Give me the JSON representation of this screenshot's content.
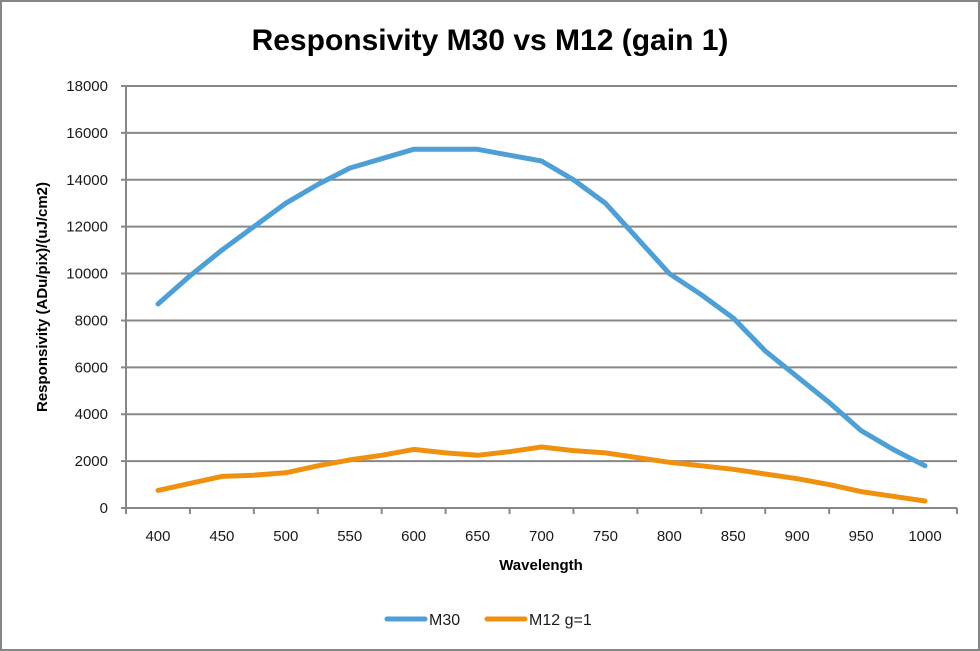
{
  "chart_data": {
    "type": "line",
    "title": "Responsivity M30 vs M12 (gain 1)",
    "xlabel": "Wavelength",
    "ylabel": "Responsivity (ADu/pix)/(uJ/cm2)",
    "x_tick_labels": [
      "400",
      "450",
      "500",
      "550",
      "600",
      "650",
      "700",
      "750",
      "800",
      "850",
      "900",
      "950",
      "1000"
    ],
    "y_tick_labels": [
      "0",
      "2000",
      "4000",
      "6000",
      "8000",
      "10000",
      "12000",
      "14000",
      "16000",
      "18000"
    ],
    "ylim": [
      0,
      18000
    ],
    "xlim": [
      400,
      1000
    ],
    "grid": "horizontal",
    "legend_position": "bottom",
    "x": [
      400,
      425,
      450,
      475,
      500,
      525,
      550,
      575,
      600,
      625,
      650,
      675,
      700,
      725,
      750,
      775,
      800,
      825,
      850,
      875,
      900,
      925,
      950,
      975,
      1000
    ],
    "series": [
      {
        "name": "M30",
        "color": "#4e9fd5",
        "values": [
          8700,
          9900,
          11000,
          12000,
          13000,
          13800,
          14500,
          14900,
          15300,
          15300,
          15300,
          15050,
          14800,
          14000,
          13000,
          11500,
          10000,
          9100,
          8100,
          6700,
          5600,
          4500,
          3300,
          2500,
          1800
        ]
      },
      {
        "name": "M12 g=1",
        "color": "#f0900f",
        "values": [
          750,
          1050,
          1350,
          1400,
          1500,
          1800,
          2050,
          2250,
          2500,
          2350,
          2250,
          2400,
          2600,
          2450,
          2350,
          2150,
          1950,
          1800,
          1650,
          1450,
          1250,
          1000,
          700,
          500,
          300
        ]
      }
    ]
  }
}
